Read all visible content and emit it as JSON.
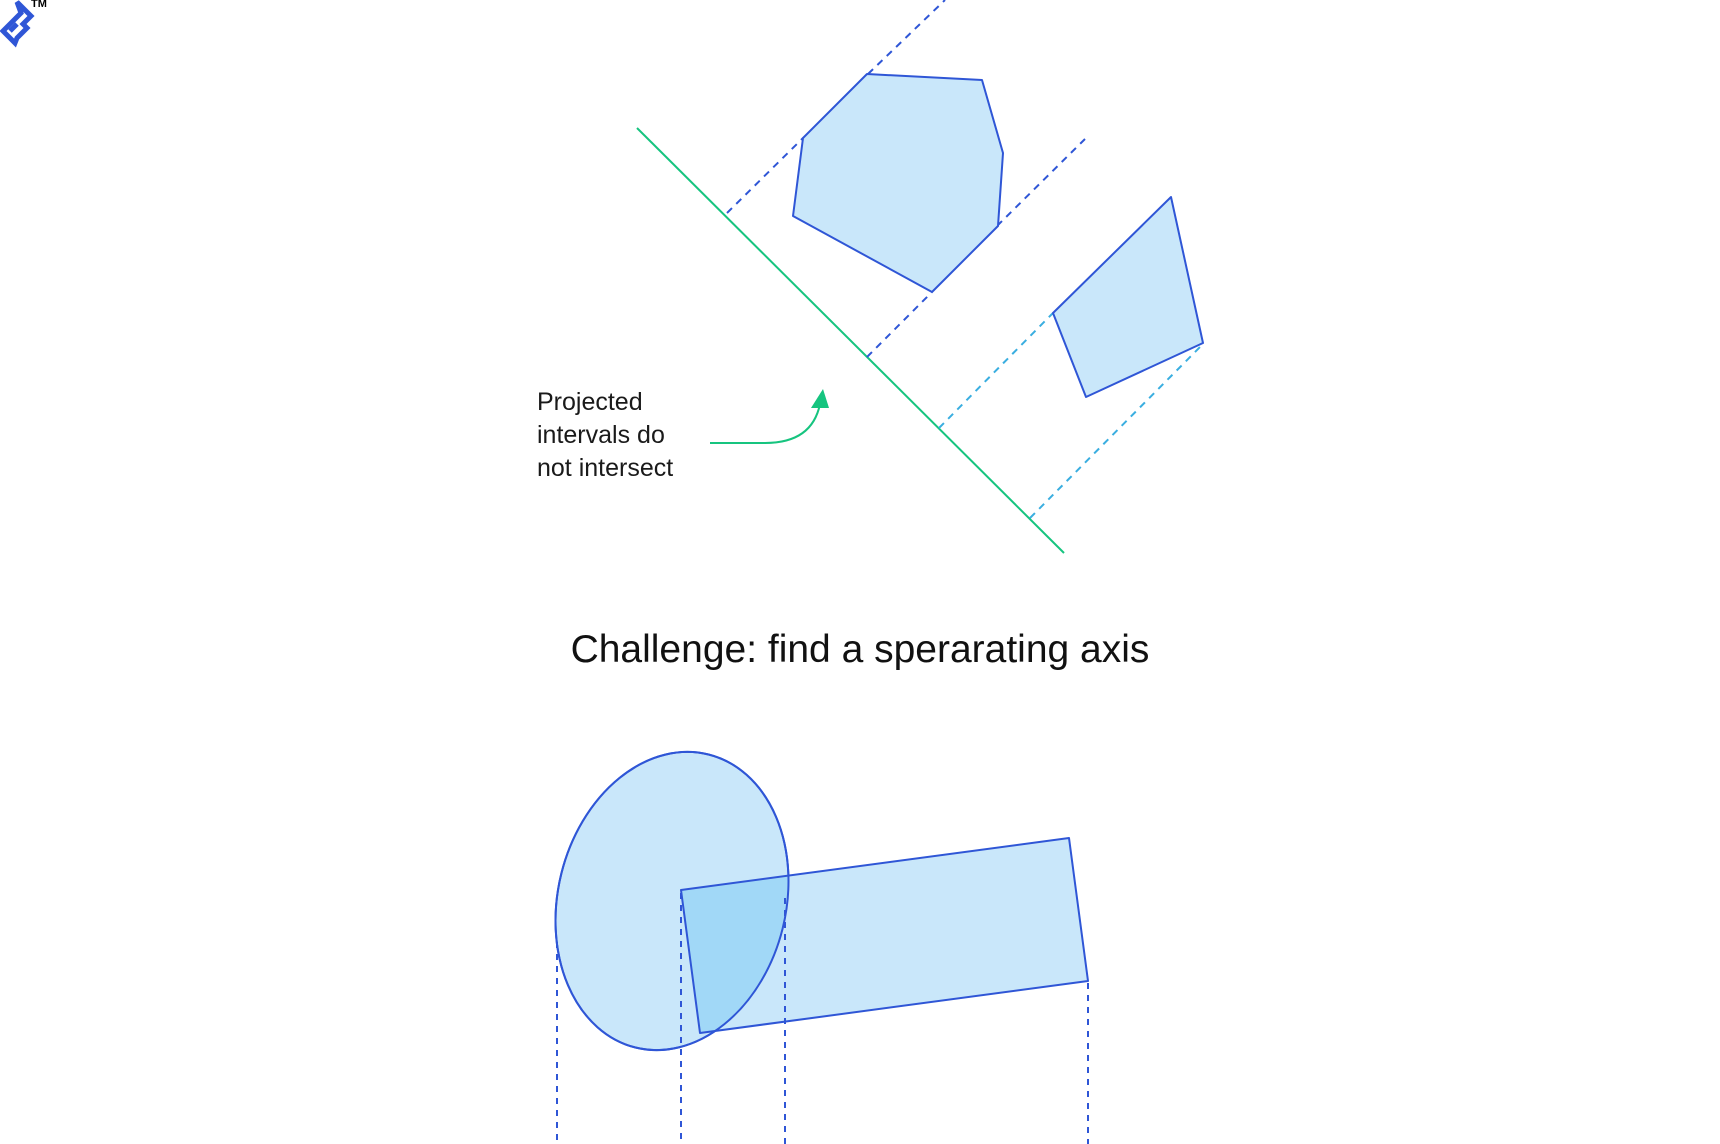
{
  "logo": {
    "trademark": "TM",
    "color": "#2f56d6"
  },
  "annotation": {
    "lines": [
      "Projected",
      "intervals do",
      "not intersect"
    ]
  },
  "challenge": {
    "title": "Challenge: find a sperarating axis"
  },
  "colors": {
    "shape_fill": "#c9e7fa",
    "overlap_fill": "#a1d8f7",
    "shape_stroke": "#2f56d6",
    "axis_green": "#16c47f",
    "projection_dark": "#2f56d6",
    "projection_light": "#3aaee0"
  },
  "icons": {
    "logo": "toptal-logo-icon",
    "arrow": "curved-arrow-icon"
  }
}
